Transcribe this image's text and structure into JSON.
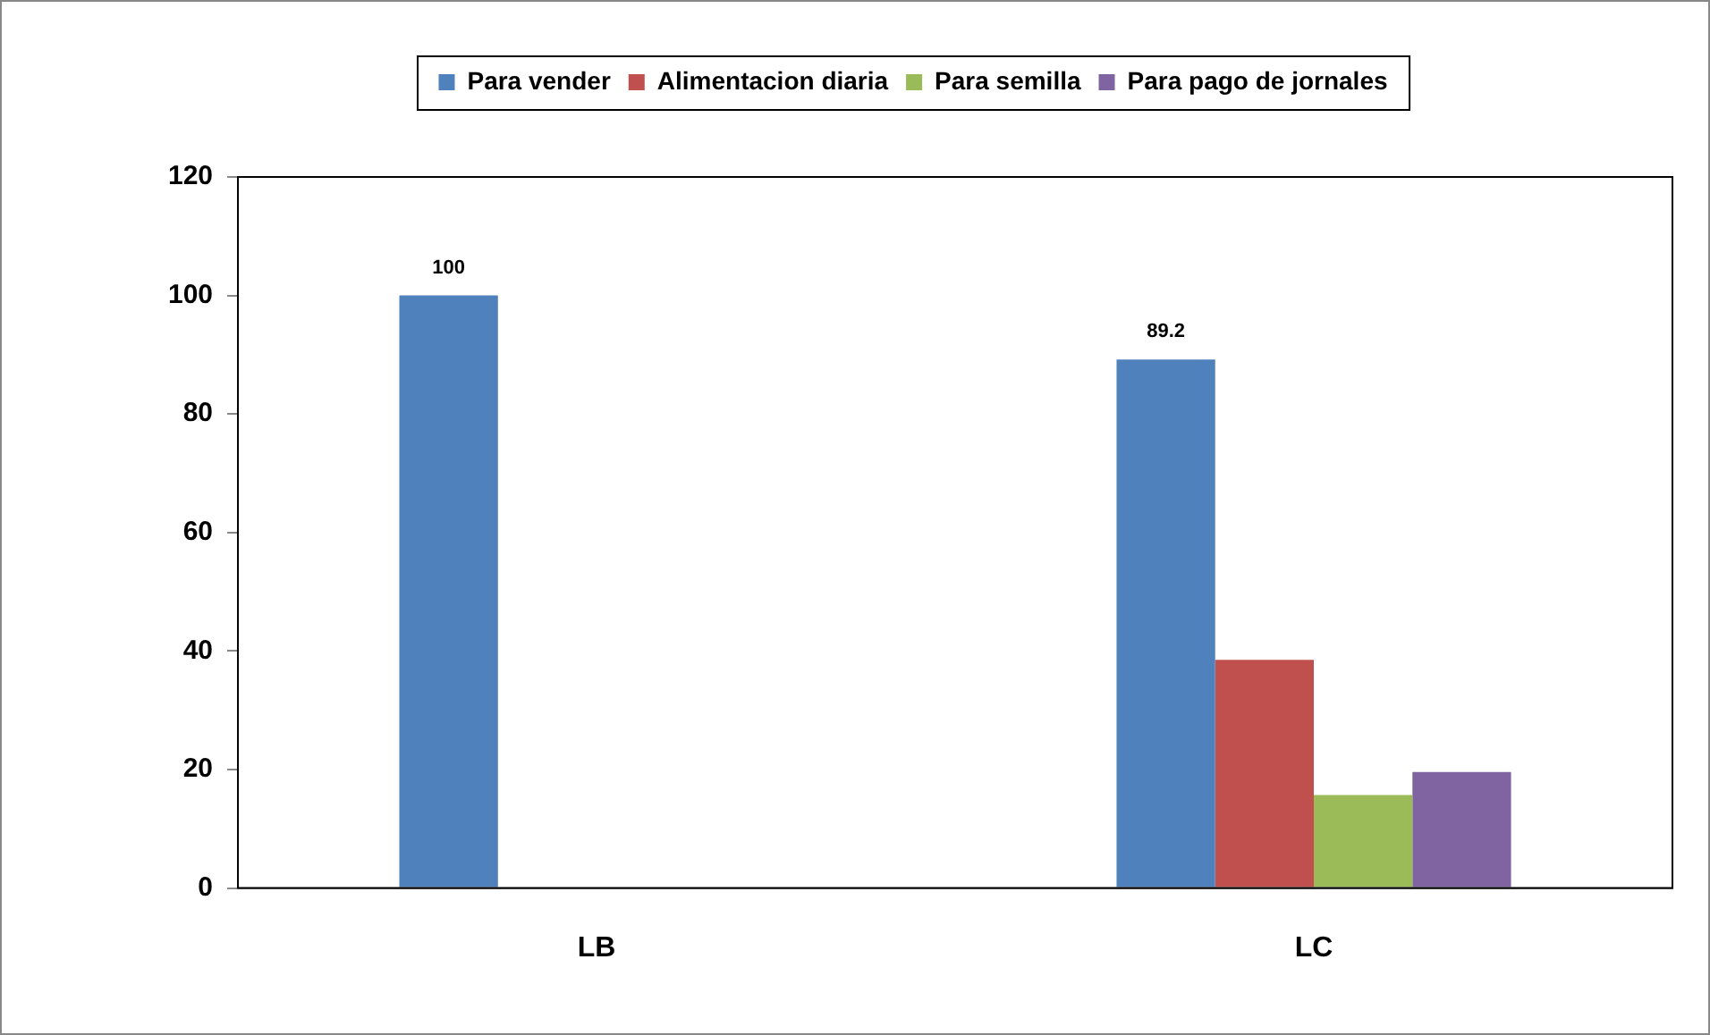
{
  "chart_data": {
    "type": "bar",
    "categories": [
      "LB",
      "LC"
    ],
    "series": [
      {
        "name": "Para vender",
        "color": "#4f81bd",
        "values": [
          100,
          89.2
        ],
        "value_labels": [
          "100",
          "89.2"
        ]
      },
      {
        "name": "Alimentacion diaria",
        "color": "#c0504d",
        "values": [
          null,
          38.5
        ]
      },
      {
        "name": "Para semilla",
        "color": "#9bbb59",
        "values": [
          null,
          15.7
        ]
      },
      {
        "name": "Para pago de jornales",
        "color": "#8064a2",
        "values": [
          null,
          19.6
        ]
      }
    ],
    "ylim": [
      0,
      120
    ],
    "yticks": [
      0,
      20,
      40,
      60,
      80,
      100,
      120
    ],
    "grid": false,
    "legend": "top"
  }
}
